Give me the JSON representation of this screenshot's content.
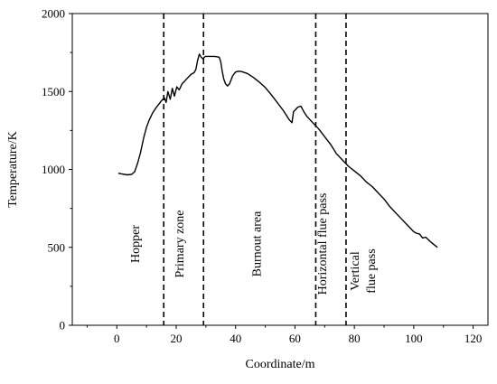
{
  "chart_data": {
    "type": "line",
    "title": "",
    "xlabel": "Coordinate/m",
    "ylabel": "Temperature/K",
    "xlim": [
      -15,
      125
    ],
    "ylim": [
      0,
      2000
    ],
    "xticks": [
      0,
      20,
      40,
      60,
      80,
      100,
      120
    ],
    "yticks": [
      0,
      500,
      1000,
      1500,
      2000
    ],
    "grid": false,
    "legend": "none",
    "line_color": "#000000",
    "series": [
      {
        "x": [
          0.5,
          2,
          3.5,
          5,
          6,
          7,
          8,
          9,
          10,
          11,
          12,
          13,
          14,
          15,
          16,
          16.6,
          17.2,
          18,
          18.7,
          19.4,
          20.2,
          21,
          22,
          23,
          24,
          25,
          26,
          26.6,
          27.2,
          27.8,
          28.4,
          29,
          29.8,
          31,
          33,
          34.5,
          35,
          35.5,
          36,
          36.6,
          37.3,
          38,
          39,
          40,
          41,
          42,
          44,
          46,
          48,
          50,
          52,
          54,
          56,
          57,
          58,
          59,
          59.5,
          60,
          61,
          62,
          63,
          64,
          65,
          66,
          68,
          70,
          72,
          74,
          76,
          77,
          78,
          80,
          82,
          84,
          86,
          88,
          90,
          92,
          94,
          96,
          98,
          100,
          101,
          102,
          103,
          104,
          106,
          108
        ],
        "y": [
          975,
          970,
          965,
          968,
          985,
          1040,
          1110,
          1200,
          1270,
          1320,
          1360,
          1390,
          1415,
          1440,
          1460,
          1430,
          1500,
          1450,
          1520,
          1470,
          1530,
          1510,
          1550,
          1570,
          1590,
          1610,
          1620,
          1640,
          1700,
          1740,
          1720,
          1710,
          1725,
          1725,
          1725,
          1720,
          1690,
          1630,
          1580,
          1550,
          1535,
          1550,
          1600,
          1625,
          1630,
          1628,
          1615,
          1590,
          1560,
          1525,
          1480,
          1430,
          1380,
          1350,
          1320,
          1300,
          1370,
          1380,
          1400,
          1405,
          1370,
          1340,
          1320,
          1300,
          1260,
          1210,
          1160,
          1100,
          1060,
          1040,
          1020,
          990,
          960,
          920,
          890,
          850,
          810,
          760,
          720,
          680,
          640,
          600,
          590,
          585,
          560,
          565,
          530,
          500
        ]
      }
    ],
    "boundaries": [
      15.8,
      29.2,
      67,
      77.2
    ],
    "zone_labels": [
      {
        "text": "Hopper",
        "x": 7.5
      },
      {
        "text": "Primary zone",
        "x": 22.5
      },
      {
        "text": "Burnout area",
        "x": 48.5
      },
      {
        "text": "Horizontal flue pass",
        "x": 70.5
      },
      {
        "text": "Vertical",
        "x": 81.5
      },
      {
        "text": "flue pass",
        "x": 87
      }
    ]
  }
}
